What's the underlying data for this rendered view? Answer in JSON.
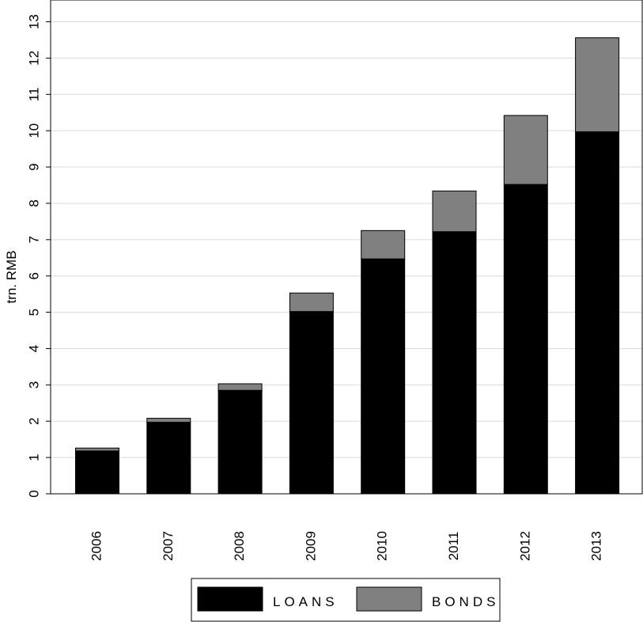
{
  "chart_data": {
    "type": "bar",
    "stacked": true,
    "categories": [
      "2006",
      "2007",
      "2008",
      "2009",
      "2010",
      "2011",
      "2012",
      "2013"
    ],
    "series": [
      {
        "name": "LOANS",
        "values": [
          1.18,
          1.97,
          2.85,
          5.02,
          6.47,
          7.22,
          8.52,
          9.97
        ],
        "color": "#000000"
      },
      {
        "name": "BONDS",
        "values": [
          0.08,
          0.11,
          0.18,
          0.51,
          0.78,
          1.12,
          1.9,
          2.59
        ],
        "color": "#808080"
      }
    ],
    "ylabel": "trn. RMB",
    "xlabel": "",
    "title": "",
    "ylim": [
      0,
      13.6
    ],
    "yticks": [
      "0",
      "1",
      "2",
      "3",
      "4",
      "5",
      "6",
      "7",
      "8",
      "9",
      "10",
      "11",
      "12",
      "13"
    ],
    "grid": true,
    "legend_position": "bottom"
  }
}
